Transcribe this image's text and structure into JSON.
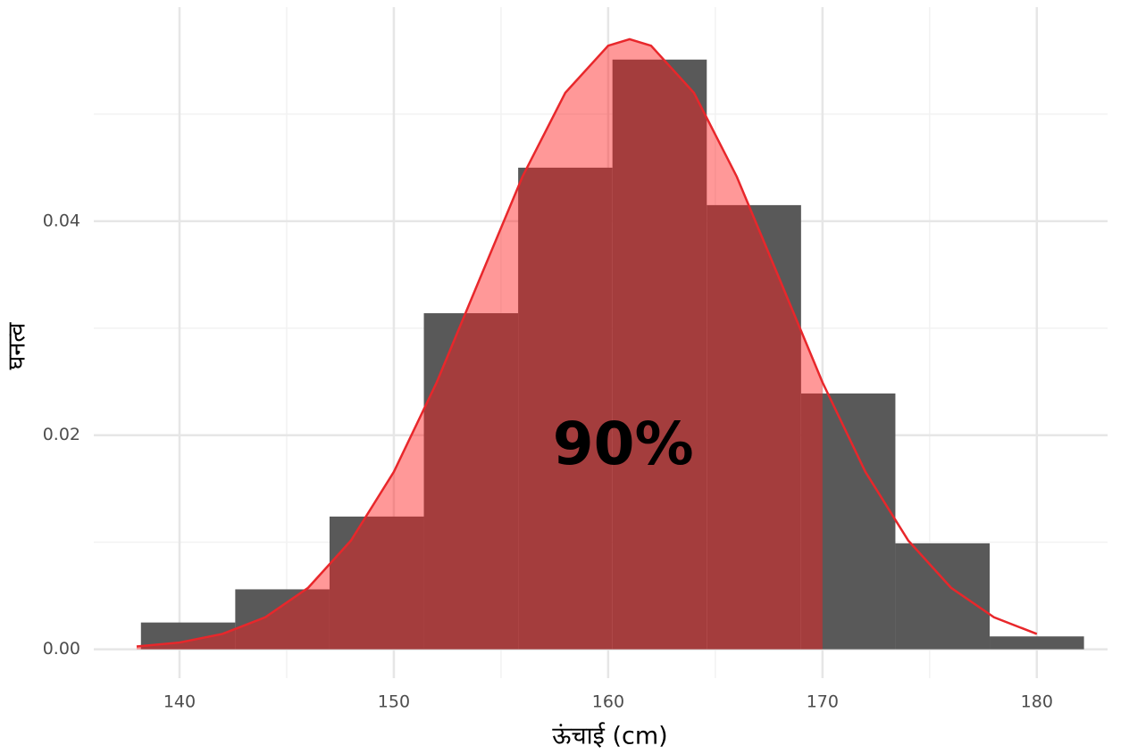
{
  "chart_data": {
    "type": "histogram",
    "x_label": "ऊंचाई (cm)",
    "y_label": "घनत्व",
    "bins": [
      138.2,
      142.6,
      147.0,
      151.4,
      155.8,
      160.2,
      164.6,
      169.0,
      173.4,
      177.8,
      182.2
    ],
    "values": [
      0.0025,
      0.0056,
      0.0124,
      0.0314,
      0.045,
      0.0551,
      0.0415,
      0.0239,
      0.0099,
      0.0012
    ],
    "color": "#595959",
    "curve": {
      "color": "#e8272b",
      "fill": "#ff1a1a",
      "shade_xmax": 170,
      "x": [
        138,
        140,
        142,
        144,
        146,
        148,
        150,
        152,
        154,
        156,
        158,
        160,
        161,
        162,
        164,
        166,
        168,
        170,
        172,
        174,
        176,
        178,
        180
      ],
      "values": [
        0.00026,
        0.00063,
        0.00143,
        0.00299,
        0.00574,
        0.01016,
        0.01658,
        0.02494,
        0.03457,
        0.04416,
        0.052,
        0.0564,
        0.057,
        0.0564,
        0.052,
        0.04416,
        0.03457,
        0.02494,
        0.01658,
        0.01016,
        0.00574,
        0.00299,
        0.00143
      ]
    },
    "annotation": {
      "text": "90%",
      "x": 160.7,
      "y": 0.0188
    },
    "xlim": [
      136.0,
      183.3
    ],
    "ylim": [
      -0.0027,
      0.06
    ],
    "xticks": [
      140,
      150,
      160,
      170,
      180
    ],
    "yticks": [
      {
        "value": 0,
        "label": "0.00"
      },
      {
        "value": 0.02,
        "label": "0.02"
      },
      {
        "value": 0.04,
        "label": "0.04"
      }
    ],
    "minor_xticks": [
      145,
      155,
      165,
      175
    ],
    "minor_yticks": [
      0.01,
      0.03,
      0.05
    ],
    "grid": true
  }
}
